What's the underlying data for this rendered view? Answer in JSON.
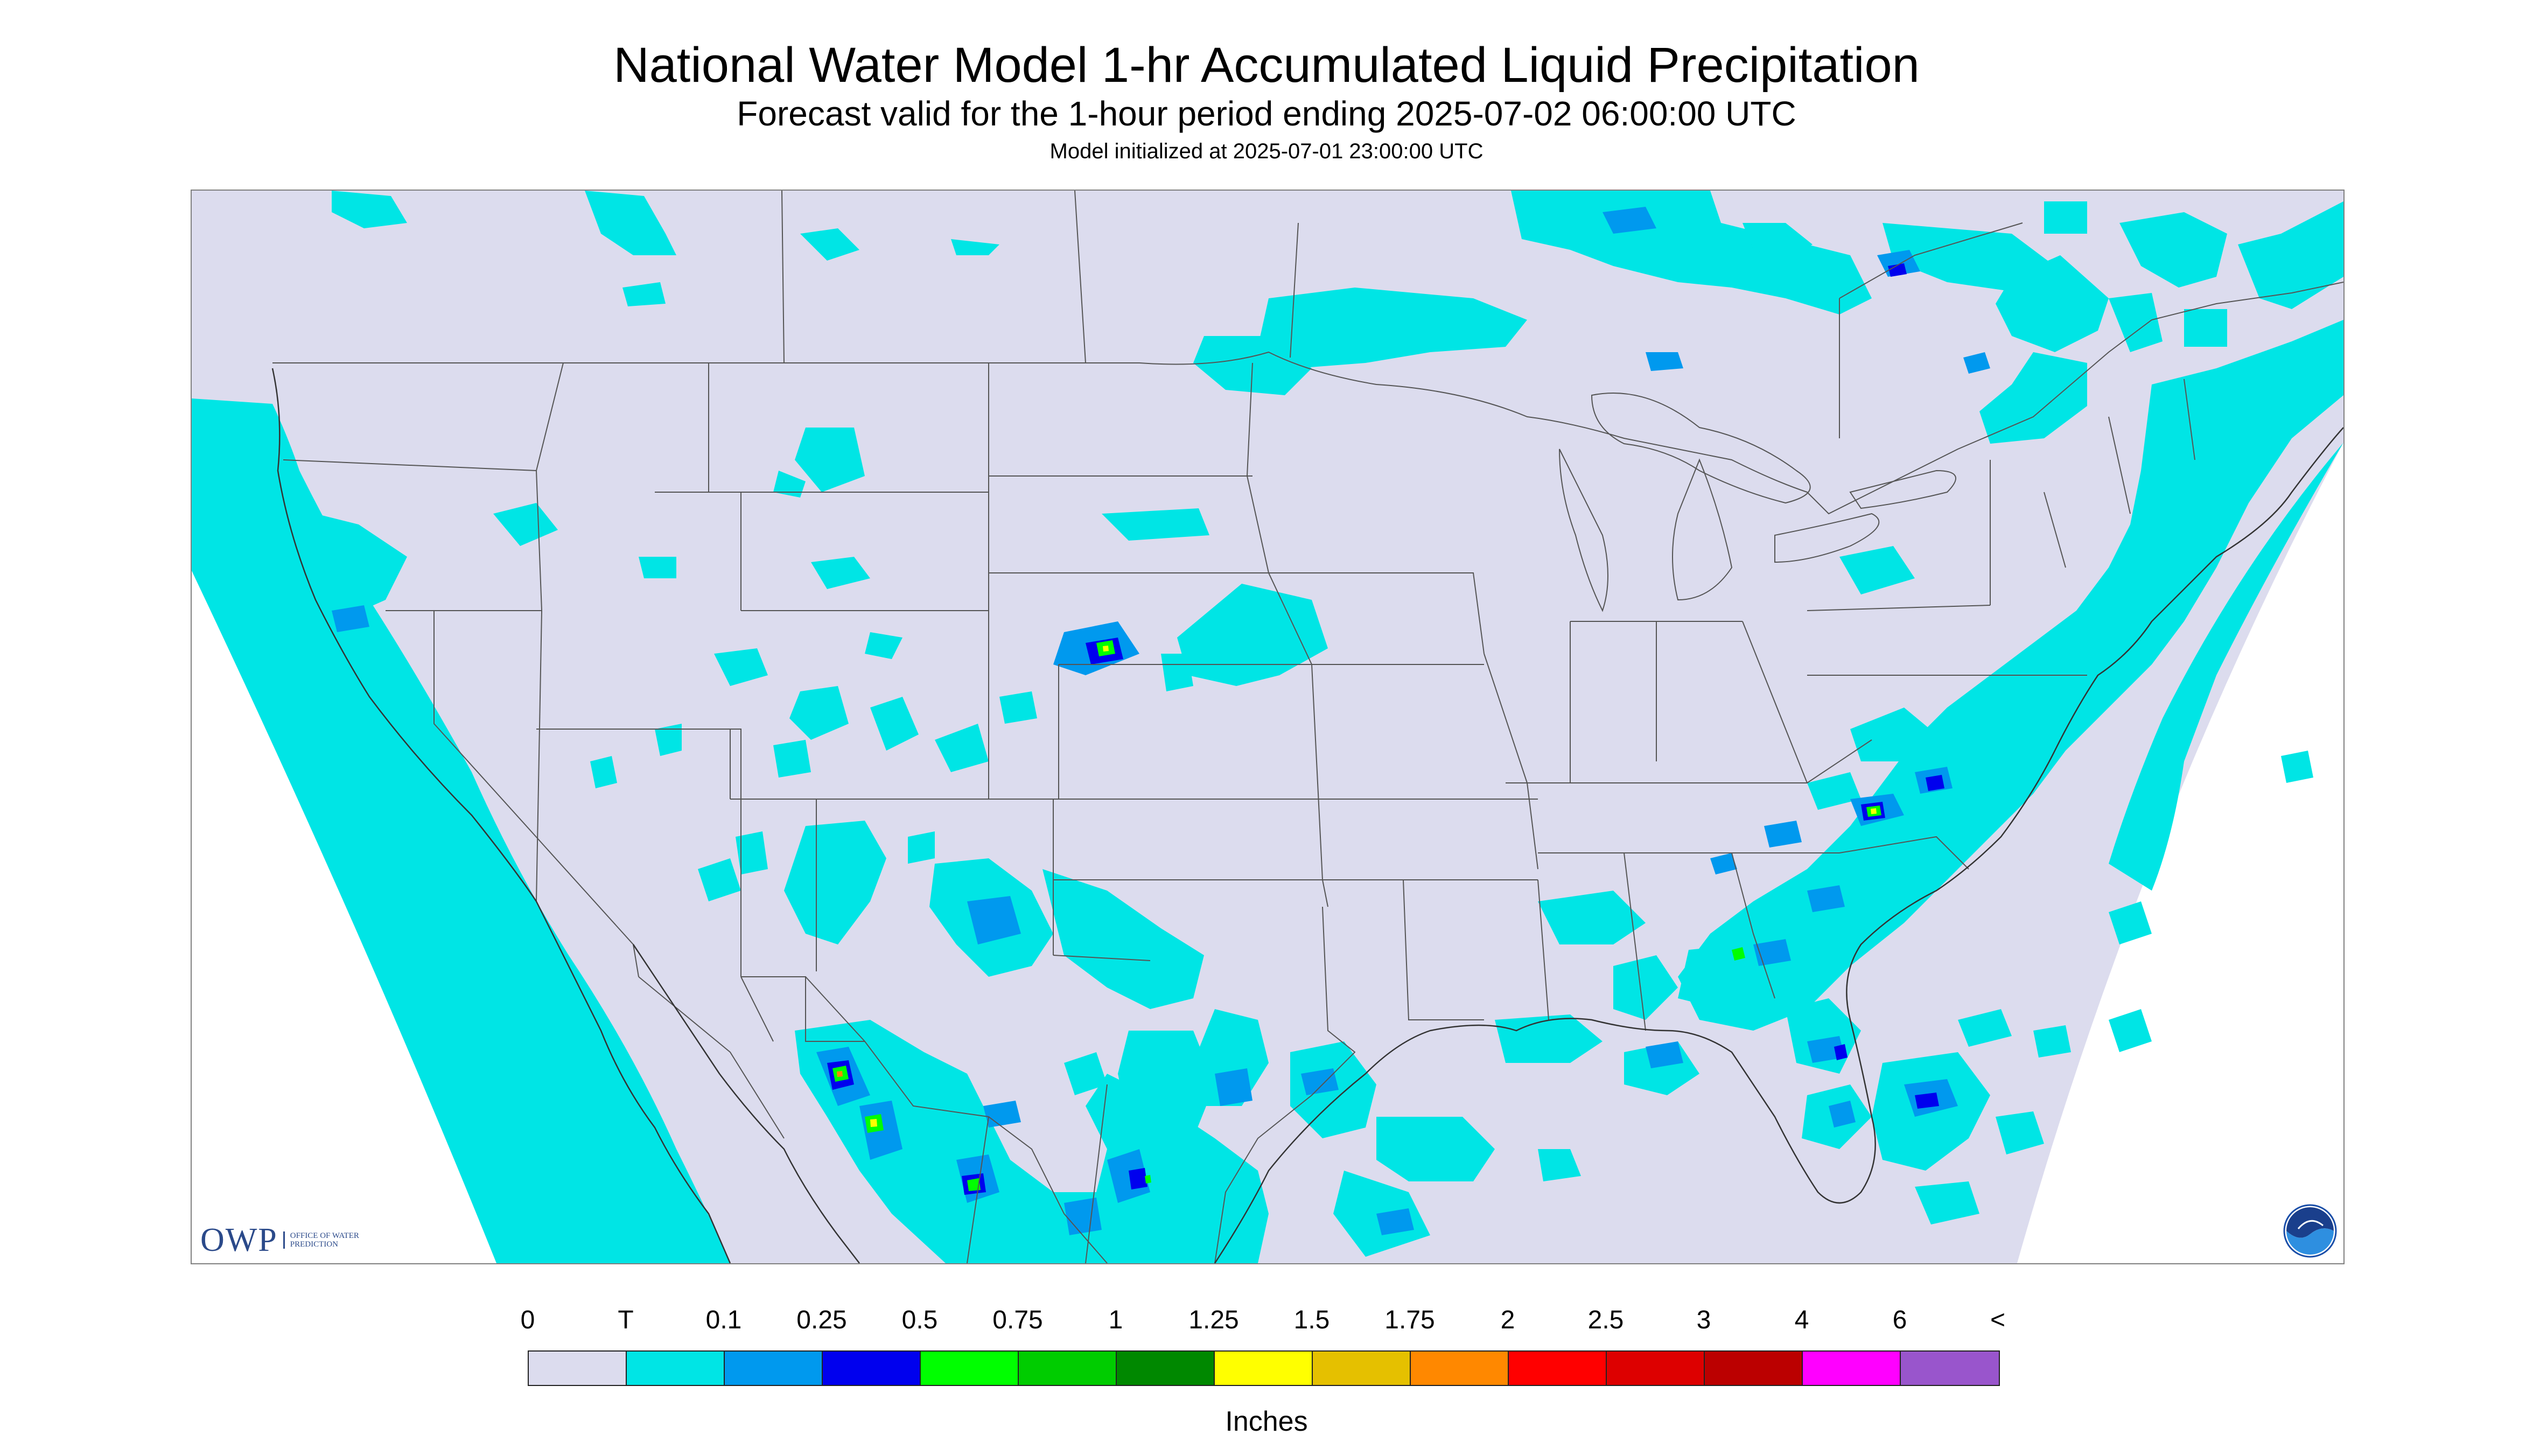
{
  "header": {
    "title": "National Water Model 1-hr Accumulated Liquid Precipitation",
    "subtitle": "Forecast valid for the 1-hour period ending 2025-07-02 06:00:00 UTC",
    "init": "Model initialized at 2025-07-01 23:00:00 UTC"
  },
  "map": {
    "background_color": "#dcdcee",
    "trace_color": "#00e5e5",
    "light_color": "#0099ee",
    "heavy_color": "#0000ee",
    "border_color": "#555555"
  },
  "logos": {
    "owp_text": "OWP",
    "owp_sub": "OFFICE OF WATER PREDICTION",
    "noaa_icon": "noaa-logo-icon"
  },
  "legend": {
    "labels": [
      "0",
      "T",
      "0.1",
      "0.25",
      "0.5",
      "0.75",
      "1",
      "1.25",
      "1.5",
      "1.75",
      "2",
      "2.5",
      "3",
      "4",
      "6",
      "<"
    ],
    "colors": [
      "#dcdcee",
      "#00e5e5",
      "#0099ee",
      "#0000ee",
      "#00ff00",
      "#00cc00",
      "#008800",
      "#ffff00",
      "#e5c000",
      "#ff8800",
      "#ff0000",
      "#dd0000",
      "#bb0000",
      "#ff00ff",
      "#9955cc"
    ],
    "units": "Inches"
  }
}
